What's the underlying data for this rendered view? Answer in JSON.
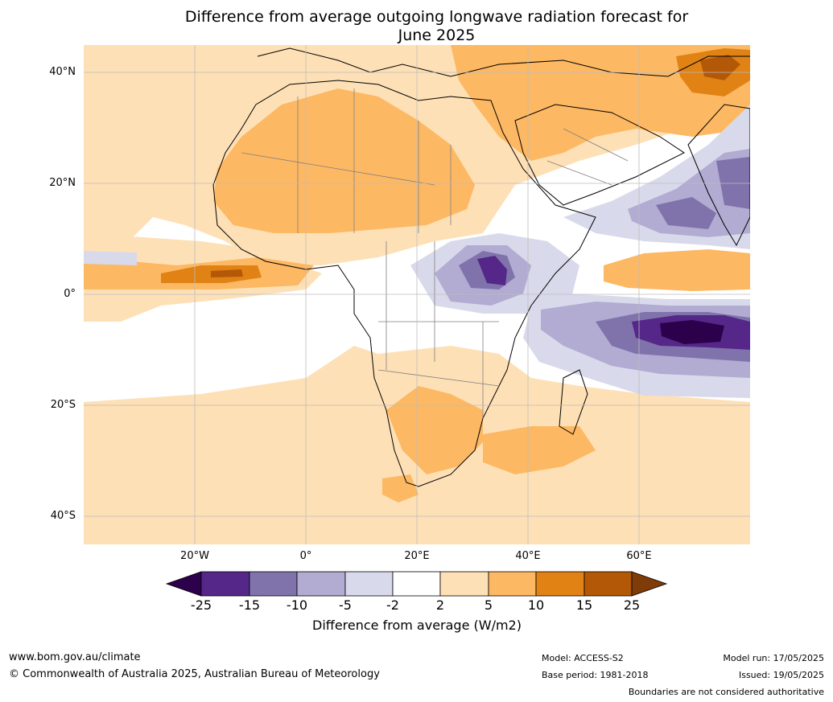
{
  "title_line1": "Difference from average outgoing longwave radiation forecast for",
  "title_line2": "June 2025",
  "map": {
    "lat_labels": [
      "40°N",
      "20°N",
      "0°",
      "20°S",
      "40°S"
    ],
    "lon_labels": [
      "20°W",
      "0°",
      "20°E",
      "40°E",
      "60°E"
    ]
  },
  "legend": {
    "ticks": [
      "-25",
      "-15",
      "-10",
      "-5",
      "-2",
      "2",
      "5",
      "10",
      "15",
      "25"
    ],
    "colors": [
      "#2d004b",
      "#542788",
      "#8073ac",
      "#b2abd2",
      "#d8daeb",
      "#ffffff",
      "#fee0b6",
      "#fdb863",
      "#e08214",
      "#b35806",
      "#7f3b08"
    ],
    "label": "Difference from average (W/m2)"
  },
  "footer": {
    "website": "www.bom.gov.au/climate",
    "copyright": "© Commonwealth of Australia 2025, Australian Bureau of Meteorology",
    "model": "Model: ACCESS-S2",
    "base_period": "Base period: 1981-2018",
    "model_run": "Model run: 17/05/2025",
    "issued": "Issued: 19/05/2025",
    "disclaimer": "Boundaries are not considered authoritative"
  }
}
